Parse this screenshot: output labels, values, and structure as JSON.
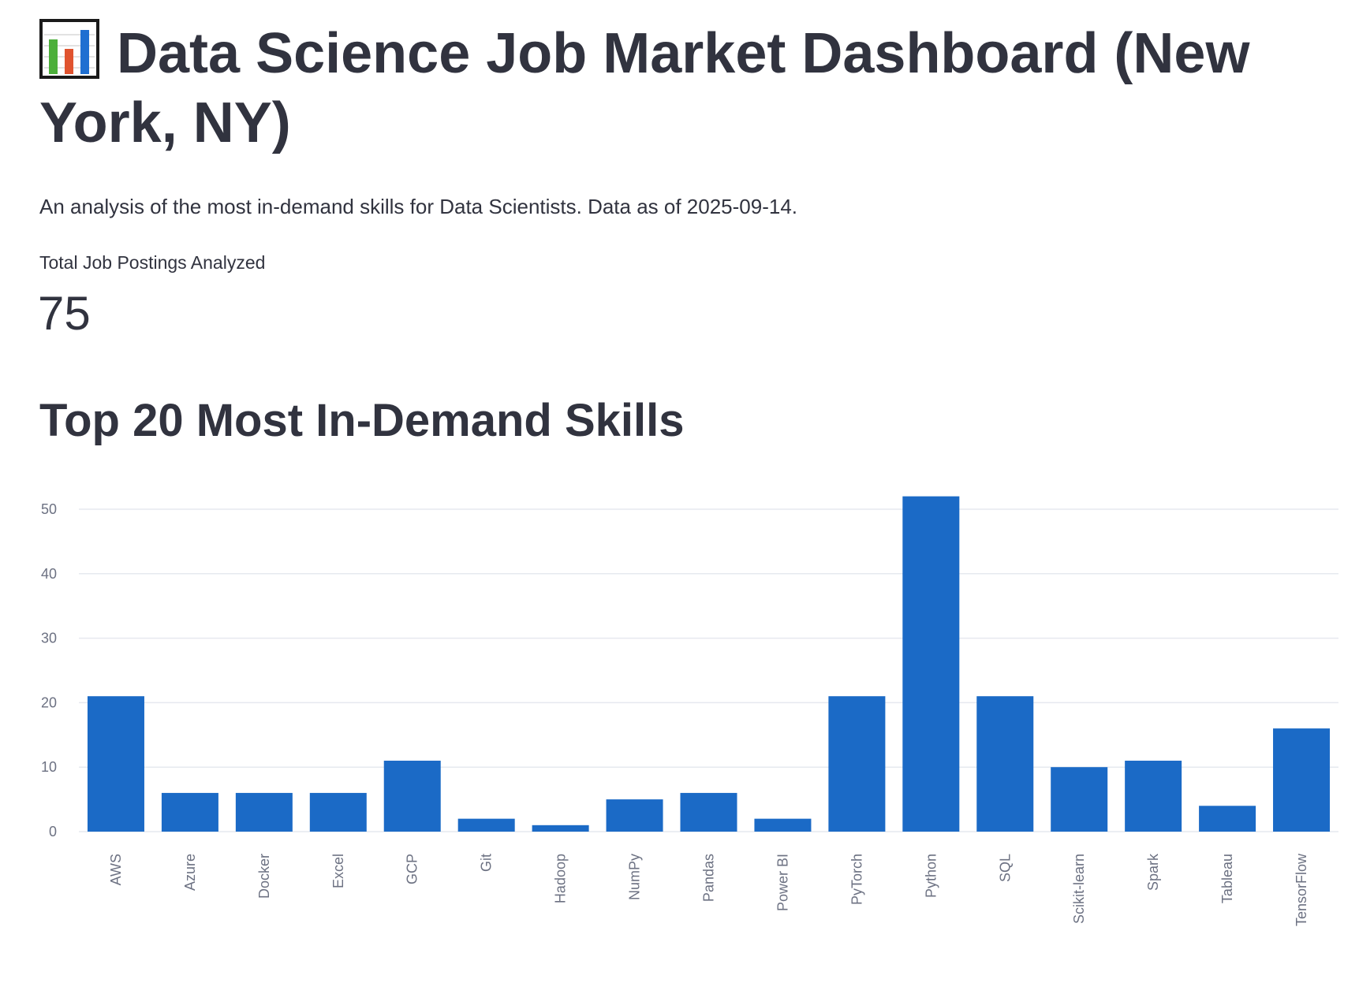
{
  "header": {
    "icon": "bar-chart-icon",
    "title": "Data Science Job Market Dashboard (New York, NY)",
    "subtitle": "An analysis of the most in-demand skills for Data Scientists. Data as of 2025-09-14."
  },
  "metric": {
    "label": "Total Job Postings Analyzed",
    "value": "75"
  },
  "section": {
    "heading": "Top 20 Most In-Demand Skills"
  },
  "colors": {
    "bar": "#1b6ac6",
    "grid": "#e6e9ef",
    "text": "#31333f",
    "tick": "#6c7182"
  },
  "chart_data": {
    "type": "bar",
    "categories": [
      "AWS",
      "Azure",
      "Docker",
      "Excel",
      "GCP",
      "Git",
      "Hadoop",
      "NumPy",
      "Pandas",
      "Power BI",
      "PyTorch",
      "Python",
      "SQL",
      "Scikit-learn",
      "Spark",
      "Tableau",
      "TensorFlow"
    ],
    "values": [
      21,
      6,
      6,
      6,
      11,
      2,
      1,
      5,
      6,
      2,
      21,
      52,
      21,
      10,
      11,
      4,
      16
    ],
    "ylim": [
      0,
      52
    ],
    "yticks": [
      0,
      10,
      20,
      30,
      40,
      50
    ],
    "grid": true,
    "xlabel": "",
    "ylabel": ""
  }
}
